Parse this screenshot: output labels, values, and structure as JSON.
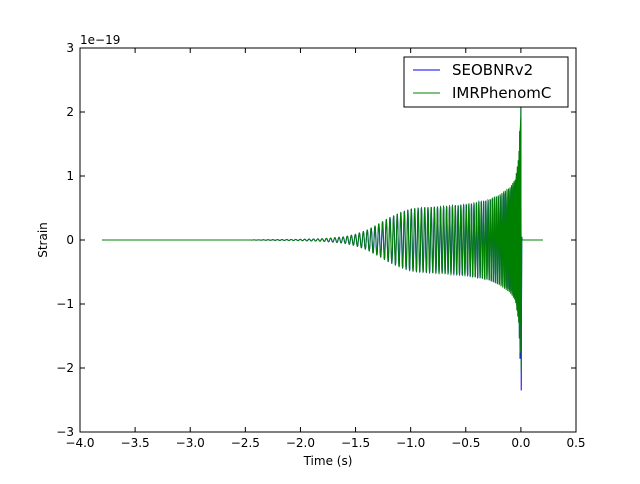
{
  "chart_data": {
    "type": "line",
    "title": "",
    "xlabel": "Time (s)",
    "ylabel": "Strain",
    "y_offset_label": "1e−19",
    "xlim": [
      -4.0,
      0.5
    ],
    "ylim": [
      -3,
      3
    ],
    "x_ticks": [
      -4.0,
      -3.5,
      -3.0,
      -2.5,
      -2.0,
      -1.5,
      -1.0,
      -0.5,
      0.0,
      0.5
    ],
    "x_tick_labels": [
      "−4.0",
      "−3.5",
      "−3.0",
      "−2.5",
      "−2.0",
      "−1.5",
      "−1.0",
      "−0.5",
      "0.0",
      "0.5"
    ],
    "y_ticks": [
      -3,
      -2,
      -1,
      0,
      1,
      2,
      3
    ],
    "y_tick_labels": [
      "−3",
      "−2",
      "−1",
      "0",
      "1",
      "2",
      "3"
    ],
    "grid": false,
    "legend_position": "top-right",
    "series": [
      {
        "name": "SEOBNRv2",
        "color": "#0000ff",
        "x_start": -3.8,
        "x_end": 0.02,
        "envelope": [
          [
            -3.8,
            0.0
          ],
          [
            -2.5,
            0.0
          ],
          [
            -2.0,
            0.01
          ],
          [
            -1.8,
            0.02
          ],
          [
            -1.6,
            0.05
          ],
          [
            -1.5,
            0.09
          ],
          [
            -1.4,
            0.15
          ],
          [
            -1.3,
            0.24
          ],
          [
            -1.2,
            0.34
          ],
          [
            -1.1,
            0.42
          ],
          [
            -1.0,
            0.48
          ],
          [
            -0.9,
            0.5
          ],
          [
            -0.7,
            0.52
          ],
          [
            -0.5,
            0.55
          ],
          [
            -0.3,
            0.62
          ],
          [
            -0.2,
            0.68
          ],
          [
            -0.1,
            0.78
          ],
          [
            -0.05,
            0.9
          ],
          [
            -0.02,
            1.2
          ],
          [
            0.0,
            2.3
          ]
        ],
        "min_value": -2.35
      },
      {
        "name": "IMRPhenomC",
        "color": "#008000",
        "x_start": -3.8,
        "x_end": 0.2,
        "envelope": [
          [
            -3.8,
            0.0
          ],
          [
            -2.5,
            0.0
          ],
          [
            -2.0,
            0.01
          ],
          [
            -1.8,
            0.02
          ],
          [
            -1.6,
            0.05
          ],
          [
            -1.5,
            0.09
          ],
          [
            -1.4,
            0.15
          ],
          [
            -1.3,
            0.24
          ],
          [
            -1.2,
            0.34
          ],
          [
            -1.1,
            0.42
          ],
          [
            -1.0,
            0.48
          ],
          [
            -0.9,
            0.5
          ],
          [
            -0.7,
            0.52
          ],
          [
            -0.5,
            0.55
          ],
          [
            -0.3,
            0.62
          ],
          [
            -0.2,
            0.7
          ],
          [
            -0.1,
            0.82
          ],
          [
            -0.05,
            0.95
          ],
          [
            -0.02,
            1.3
          ],
          [
            0.0,
            2.1
          ]
        ],
        "min_value": -2.05
      }
    ]
  }
}
